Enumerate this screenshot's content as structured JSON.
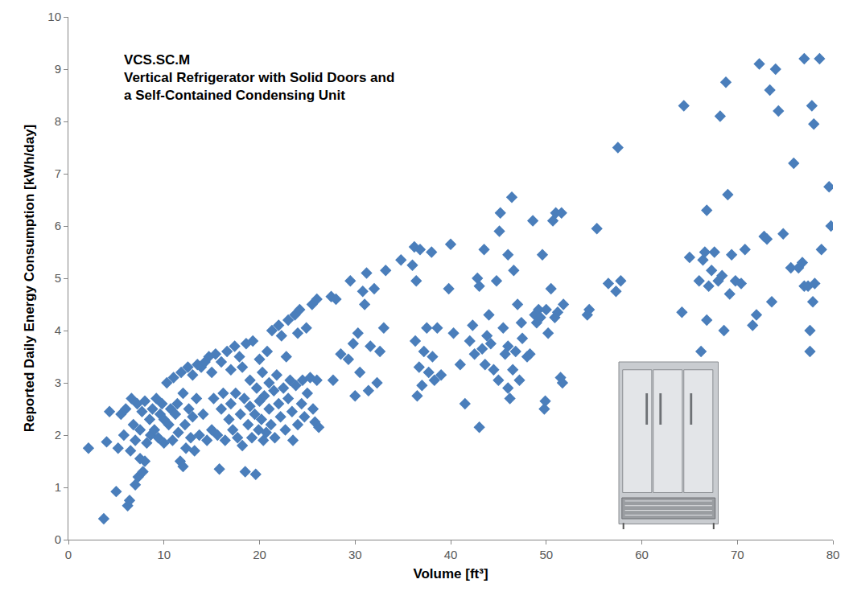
{
  "chart_data": {
    "type": "scatter",
    "annotations": [
      "VCS.SC.M",
      "Vertical Refrigerator with Solid Doors and",
      "a Self-Contained Condensing Unit"
    ],
    "x_label": "Volume [ft³]",
    "y_label": "Reported Daily Energy Consumption [kWh/day]",
    "color": "#4A7EBB",
    "marker": "diamond",
    "grid": false,
    "xlim": [
      0,
      80
    ],
    "xticks": [
      0,
      10,
      20,
      30,
      40,
      50,
      60,
      70,
      80
    ],
    "ylim": [
      0,
      10
    ],
    "yticks": [
      0,
      1,
      2,
      3,
      4,
      5,
      6,
      7,
      8,
      9,
      10
    ],
    "x": [
      2.1,
      3.7,
      4,
      4.3,
      5,
      5.2,
      5.5,
      5.8,
      6,
      6.2,
      6.4,
      6.5,
      6.6,
      6.8,
      7,
      7,
      7.2,
      7.3,
      7.5,
      7.5,
      7.7,
      7.8,
      8,
      8,
      8.2,
      8.5,
      8.6,
      8.8,
      9,
      9.2,
      9.4,
      9.6,
      9.8,
      10,
      10,
      10.3,
      10.5,
      10.7,
      10.9,
      11,
      11.2,
      11.4,
      11.5,
      11.7,
      11.8,
      12,
      12,
      12.2,
      12.3,
      12.5,
      12.6,
      12.8,
      13,
      13,
      13.2,
      13.4,
      13.5,
      13.7,
      13.9,
      14.1,
      14.3,
      14.5,
      14.7,
      15,
      15,
      15.2,
      15.4,
      15.6,
      15.8,
      16,
      16,
      16.2,
      16.4,
      16.6,
      16.8,
      17,
      17,
      17.2,
      17.4,
      17.5,
      17.7,
      17.9,
      18,
      18.2,
      18.2,
      18.4,
      18.5,
      18.6,
      18.8,
      19,
      19,
      19.2,
      19.3,
      19.5,
      19.6,
      19.7,
      19.9,
      20,
      20,
      20.2,
      20.3,
      20.4,
      20.5,
      20.7,
      20.8,
      21,
      21,
      21.2,
      21.3,
      21.5,
      21.6,
      21.8,
      22,
      22,
      22.2,
      22.3,
      22.5,
      22.7,
      22.8,
      23,
      23,
      23.2,
      23.4,
      23.5,
      23.7,
      23.8,
      24,
      24,
      24.2,
      24.4,
      24.5,
      24.7,
      24.9,
      25,
      25.3,
      25.5,
      25.6,
      25.8,
      26,
      26,
      26.2,
      27.5,
      27.7,
      28,
      28.5,
      29.3,
      29.5,
      29.8,
      30,
      30.3,
      30.5,
      30.8,
      31,
      31.2,
      31.4,
      31.6,
      32,
      32.3,
      32.6,
      33.2,
      33,
      34.8,
      36,
      36.2,
      36.3,
      36.4,
      36.5,
      36.7,
      36.8,
      37,
      37.2,
      37.5,
      37.7,
      38,
      38.1,
      38.3,
      38.6,
      39,
      39.8,
      40,
      40.3,
      41,
      41.5,
      42,
      42.3,
      42.5,
      42.8,
      43,
      43,
      43.3,
      43.5,
      43.6,
      43.8,
      44,
      44.2,
      44.5,
      44.8,
      45,
      45.1,
      45.2,
      45.5,
      45.7,
      46,
      46,
      46,
      46.2,
      46.4,
      46.5,
      46.6,
      46.8,
      47,
      47.2,
      47.4,
      47.5,
      48,
      48.3,
      48.6,
      48.8,
      49,
      49.2,
      49.4,
      49.6,
      49.8,
      49.9,
      50,
      50.2,
      50.5,
      50.7,
      50.9,
      51,
      51.2,
      51.5,
      51.6,
      51.7,
      51.8,
      54.3,
      54.5,
      55.3,
      56.5,
      57.3,
      57.5,
      57.8,
      64.2,
      64.4,
      65,
      66,
      66.2,
      66.4,
      66.6,
      66.8,
      66.8,
      67,
      67.3,
      67.6,
      68,
      68.2,
      68.4,
      68.6,
      68.8,
      69,
      69.2,
      69.4,
      69.8,
      70.4,
      70.8,
      71.6,
      72,
      72.3,
      72.8,
      73.1,
      73.4,
      73.6,
      74,
      74.3,
      74.8,
      75.6,
      75.9,
      76.4,
      76.8,
      77,
      77,
      77.4,
      77.6,
      77.6,
      77.8,
      77.9,
      78,
      78.1,
      78.6,
      78.8,
      79.6,
      79.8
    ],
    "values": [
      1.75,
      0.4,
      1.87,
      2.45,
      0.92,
      1.75,
      2.4,
      2,
      2.5,
      0.65,
      0.75,
      1.7,
      2.7,
      2.2,
      1.05,
      1.9,
      2.6,
      1.2,
      1.55,
      2.1,
      2.45,
      1.3,
      1.5,
      2.65,
      1.85,
      2.3,
      2,
      2.5,
      2.1,
      2.7,
      1.95,
      2.4,
      2.6,
      2.3,
      1.85,
      3,
      2.2,
      2.5,
      1.9,
      3.1,
      2.4,
      2.6,
      2.05,
      1.5,
      3.2,
      1.4,
      2.8,
      2.2,
      1.75,
      3.3,
      2.5,
      1.95,
      3.15,
      2.35,
      1.7,
      2.7,
      3.35,
      2,
      3.3,
      2.4,
      3.4,
      1.9,
      3.5,
      2.1,
      3.2,
      2.7,
      3.55,
      2,
      1.35,
      3.4,
      2.5,
      2.8,
      1.9,
      3.6,
      2.3,
      3.25,
      2.6,
      2.1,
      3.7,
      2.8,
      1.95,
      3.5,
      2.4,
      1.8,
      3.3,
      2.7,
      1.3,
      3.75,
      2.2,
      2.55,
      3.05,
      1.95,
      3.8,
      2.4,
      1.25,
      2.9,
      2.1,
      3.45,
      2.65,
      2.3,
      3.2,
      1.9,
      2.75,
      2.05,
      3.6,
      2.5,
      3,
      2.2,
      4,
      2.85,
      1.95,
      3.15,
      2.6,
      4.1,
      2.35,
      3.9,
      2.9,
      2.1,
      3.5,
      4.2,
      2.7,
      3.05,
      2.45,
      1.9,
      4.3,
      2.95,
      2.2,
      3.95,
      4.4,
      2.6,
      3.05,
      2.35,
      4.05,
      2.8,
      3.1,
      4.5,
      2.5,
      2.25,
      4.6,
      3.05,
      2.15,
      4.65,
      3.05,
      4.6,
      3.55,
      3.45,
      4.95,
      3.75,
      2.75,
      3.95,
      3.2,
      4.75,
      4.5,
      5.1,
      2.85,
      3.7,
      4.8,
      3,
      3.6,
      5.15,
      4.05,
      5.35,
      5.25,
      5.6,
      3.8,
      4.95,
      2.75,
      3.3,
      5.55,
      2.95,
      3.6,
      4.05,
      3.2,
      5.5,
      3.5,
      3.05,
      4.05,
      3.15,
      4.8,
      5.65,
      3.95,
      3.35,
      2.6,
      3.8,
      4.1,
      3.55,
      5,
      4.85,
      2.15,
      3.65,
      5.55,
      3.35,
      3.9,
      4.3,
      3.75,
      3.25,
      4.95,
      3.05,
      5.9,
      6.25,
      4.05,
      3.55,
      2.9,
      3.7,
      5.45,
      2.7,
      6.55,
      3.25,
      5.15,
      3.6,
      4.5,
      3.05,
      4.15,
      3.85,
      3.5,
      3.55,
      6.1,
      4.3,
      4.15,
      4.4,
      4.25,
      5.45,
      2.5,
      2.65,
      4.4,
      3.95,
      4.8,
      6.1,
      4.25,
      6.25,
      4.35,
      3.1,
      6.25,
      3,
      4.5,
      4.3,
      4.4,
      5.95,
      4.9,
      4.75,
      7.5,
      4.95,
      4.35,
      8.3,
      5.4,
      4.95,
      3.6,
      5.35,
      5.5,
      4.2,
      6.3,
      4.85,
      5.15,
      5.5,
      4.95,
      8.1,
      5.05,
      4,
      8.75,
      6.6,
      4.7,
      5.45,
      4.95,
      4.9,
      5.55,
      4.1,
      4.3,
      9.1,
      5.8,
      5.75,
      8.6,
      4.55,
      9,
      8.2,
      5.85,
      5.2,
      7.2,
      5.2,
      5.3,
      4.85,
      9.2,
      4.85,
      3.6,
      4,
      8.3,
      4.55,
      7.95,
      4.9,
      9.2,
      5.55,
      6.75,
      6
    ]
  }
}
